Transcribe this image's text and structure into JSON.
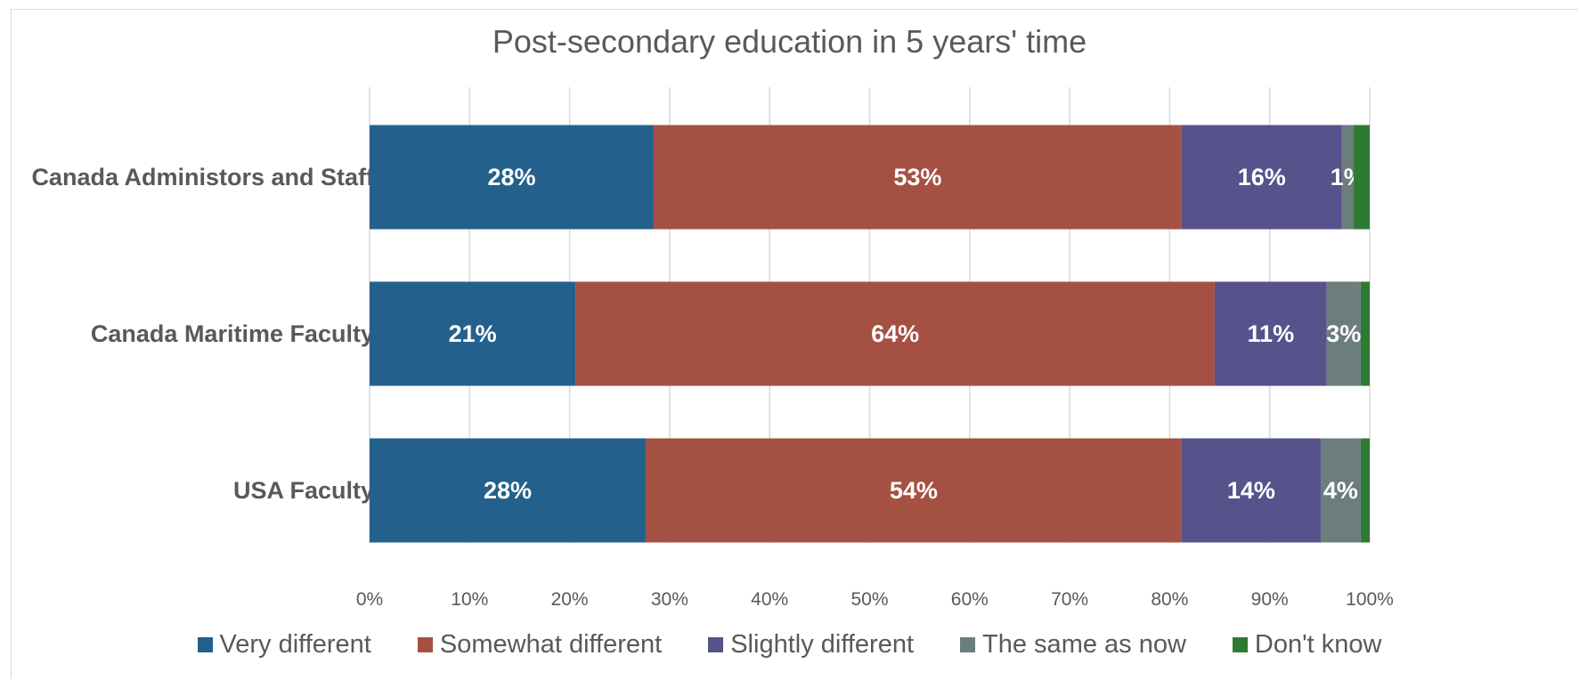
{
  "chart_data": {
    "type": "bar",
    "orientation": "horizontal",
    "stacked": "percent",
    "title": "Post-secondary education in 5 years' time",
    "categories": [
      "Canada Administors and Staff",
      "Canada Maritime Faculty",
      "USA Faculty"
    ],
    "series": [
      {
        "name": "Very different",
        "color": "#23618c",
        "values": [
          28.4,
          20.6,
          27.6
        ],
        "labels": [
          "28%",
          "21%",
          "28%"
        ]
      },
      {
        "name": "Somewhat different",
        "color": "#a45143",
        "values": [
          52.8,
          63.9,
          53.6
        ],
        "labels": [
          "53%",
          "64%",
          "54%"
        ]
      },
      {
        "name": "Slightly different",
        "color": "#56528c",
        "values": [
          16.0,
          11.2,
          13.9
        ],
        "labels": [
          "16%",
          "11%",
          "14%"
        ]
      },
      {
        "name": "The same as now",
        "color": "#6b7d7d",
        "values": [
          1.2,
          3.4,
          4.0
        ],
        "labels": [
          "1%",
          "3%",
          "4%"
        ]
      },
      {
        "name": "Don't know",
        "color": "#2f7a33",
        "values": [
          1.6,
          0.9,
          0.9
        ],
        "labels": [
          "",
          "",
          ""
        ]
      }
    ],
    "xlim": [
      0,
      100
    ],
    "xticks": [
      "0%",
      "10%",
      "20%",
      "30%",
      "40%",
      "50%",
      "60%",
      "70%",
      "80%",
      "90%",
      "100%"
    ],
    "grid": "vertical",
    "legend_position": "bottom"
  }
}
